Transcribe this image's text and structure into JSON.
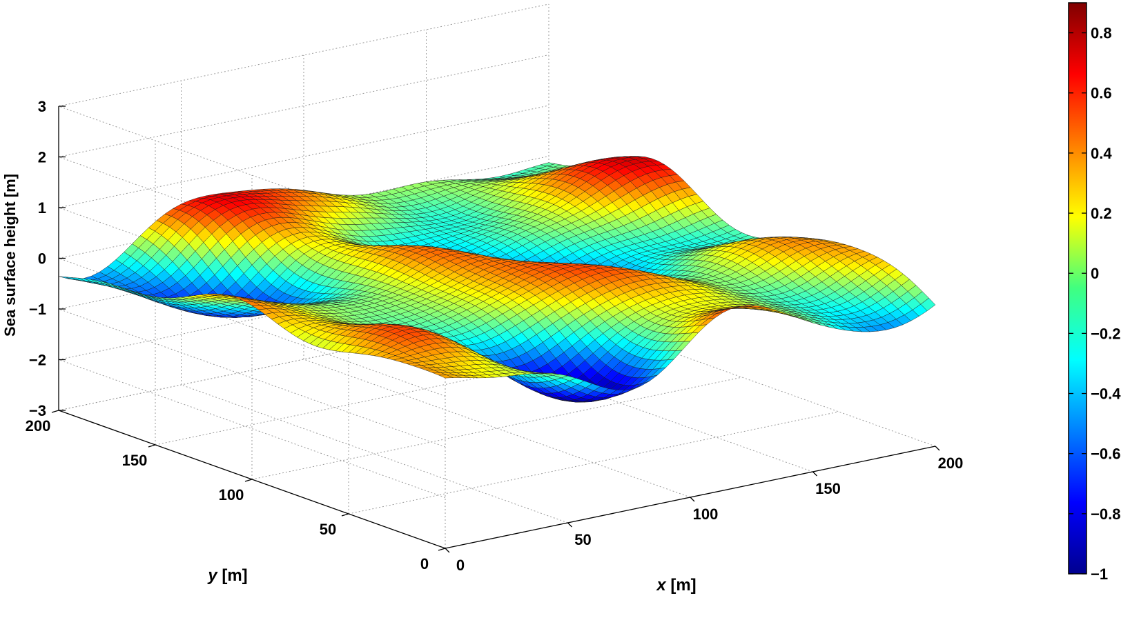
{
  "chart_data": {
    "type": "surface",
    "title": "",
    "xlabel": "x [m]",
    "ylabel": "y [m]",
    "zlabel": "Sea surface height [m]",
    "xlim": [
      0,
      200
    ],
    "ylim": [
      0,
      200
    ],
    "zlim": [
      -3,
      3
    ],
    "x_ticks": [
      "0",
      "50",
      "100",
      "150",
      "200"
    ],
    "y_ticks": [
      "0",
      "50",
      "100",
      "150",
      "200"
    ],
    "z_ticks": [
      "−3",
      "−2",
      "−1",
      "0",
      "1",
      "2",
      "3"
    ],
    "grid": true,
    "colormap": "jet",
    "colorbar": {
      "position": "right",
      "range": [
        -1,
        0.9
      ],
      "ticks": [
        "−1",
        "−0.8",
        "−0.6",
        "−0.4",
        "−0.2",
        "0",
        "0.2",
        "0.4",
        "0.6",
        "0.8"
      ]
    },
    "surface": {
      "description_values": "random sea surface, heights approx. within -1 to 0.9 m",
      "x_range": [
        0,
        200
      ],
      "y_range": [
        0,
        200
      ],
      "grid_resolution": 60
    }
  }
}
